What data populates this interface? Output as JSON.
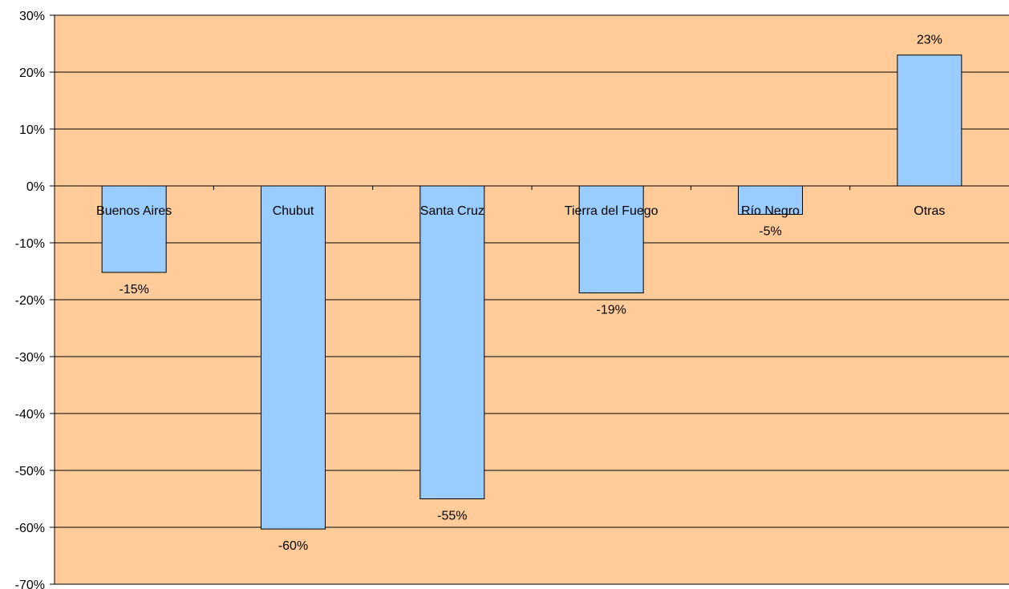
{
  "chart_data": {
    "type": "bar",
    "title": "",
    "categories": [
      "Buenos Aires",
      "Chubut",
      "Santa Cruz",
      "Tierra del Fuego",
      "Río Negro",
      "Otras"
    ],
    "values": [
      -15.2,
      -60.3,
      -55.0,
      -18.8,
      -5.0,
      23.0
    ],
    "value_labels": [
      "-15%",
      "-60%",
      "-55%",
      "-19%",
      "-5%",
      "23%"
    ],
    "y_ticks": [
      "30%",
      "20%",
      "10%",
      "0%",
      "-10%",
      "-20%",
      "-30%",
      "-40%",
      "-50%",
      "-60%",
      "-70%"
    ],
    "ylim": [
      -70,
      30
    ],
    "grid": true,
    "xlabel": "",
    "ylabel": "",
    "colors": {
      "plot_background": "#FFCC99",
      "bar_fill": "#99CCFF",
      "bar_stroke": "#000000",
      "gridline": "#000000"
    }
  }
}
